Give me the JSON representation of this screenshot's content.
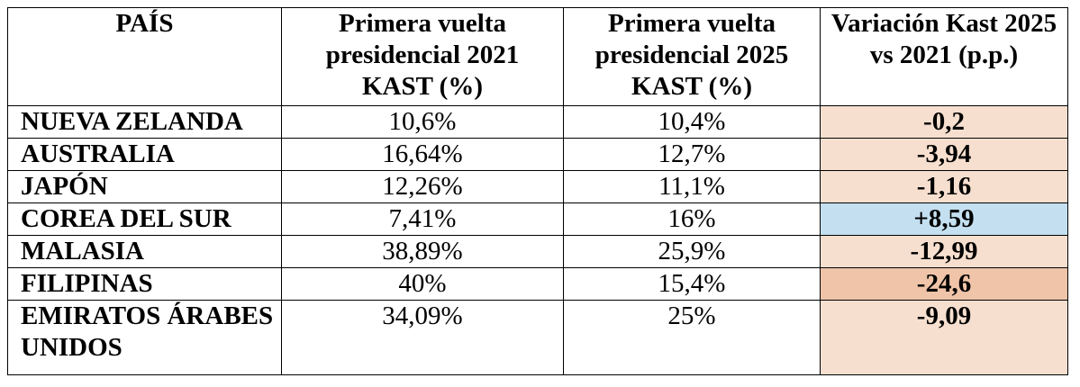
{
  "table": {
    "header": [
      "PAÍS",
      "Primera vuelta presidencial 2021 KAST  (%)",
      "Primera vuelta presidencial 2025 KAST (%)",
      "Variación Kast 2025 vs 2021 (p.p.)"
    ],
    "rows": [
      [
        "NUEVA ZELANDA",
        "10,6%",
        "10,4%",
        "-0,2"
      ],
      [
        "AUSTRALIA",
        "16,64%",
        "12,7%",
        "-3,94"
      ],
      [
        "JAPÓN",
        "12,26%",
        "11,1%",
        "-1,16"
      ],
      [
        "COREA DEL SUR",
        "7,41%",
        "16%",
        "+8,59"
      ],
      [
        "MALASIA",
        "38,89%",
        "25,9%",
        "-12,99"
      ],
      [
        "FILIPINAS",
        "40%",
        "15,4%",
        "-24,6"
      ],
      [
        "EMIRATOS ÁRABES UNIDOS",
        "34,09%",
        "25%",
        "-9,09"
      ]
    ]
  }
}
